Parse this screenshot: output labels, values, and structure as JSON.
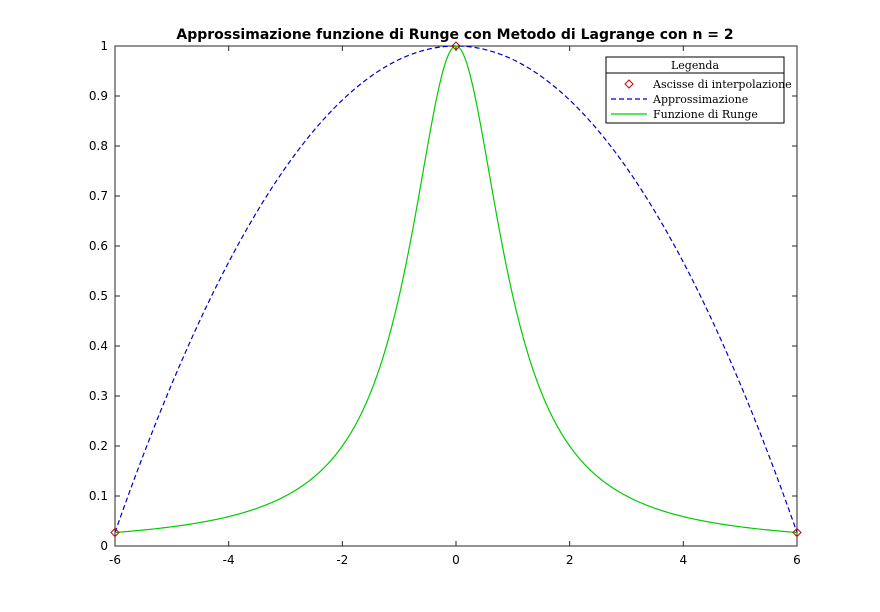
{
  "chart_data": {
    "type": "line",
    "title": "Approssimazione funzione di Runge con Metodo di Lagrange con n = 2",
    "xlabel": "",
    "ylabel": "",
    "xlim": [
      -6,
      6
    ],
    "ylim": [
      0,
      1
    ],
    "x_ticks": [
      -6,
      -4,
      -2,
      0,
      2,
      4,
      6
    ],
    "x_tick_labels": [
      "-6",
      "-4",
      "-2",
      "0",
      "2",
      "4",
      "6"
    ],
    "y_ticks": [
      0,
      0.1,
      0.2,
      0.3,
      0.4,
      0.5,
      0.6,
      0.7,
      0.8,
      0.9,
      1
    ],
    "y_tick_labels": [
      "0",
      "0.1",
      "0.2",
      "0.3",
      "0.4",
      "0.5",
      "0.6",
      "0.7",
      "0.8",
      "0.9",
      "1"
    ],
    "grid": false,
    "legend": {
      "title": "Legenda",
      "position": "top-right",
      "entries": [
        "Ascisse di interpolazione",
        "Approssimazione",
        "Funzione di Runge"
      ]
    },
    "series": [
      {
        "name": "Ascisse di interpolazione",
        "kind": "markers",
        "marker": "diamond",
        "color": "#cc0000",
        "x": [
          -6,
          0,
          6
        ],
        "y": [
          0.027,
          1,
          0.027
        ]
      },
      {
        "name": "Approssimazione",
        "kind": "line",
        "style": "dashed",
        "color": "#0000cc",
        "x": [
          -6,
          -5,
          -4,
          -3,
          -2,
          -1,
          0,
          1,
          2,
          3,
          4,
          5,
          6
        ],
        "y": [
          0.027,
          0.324,
          0.568,
          0.757,
          0.892,
          0.973,
          1.0,
          0.973,
          0.892,
          0.757,
          0.568,
          0.324,
          0.027
        ]
      },
      {
        "name": "Funzione di Runge",
        "kind": "line",
        "style": "solid",
        "color": "#00cc00",
        "x": [
          -6,
          -5,
          -4,
          -3,
          -2.5,
          -2,
          -1.5,
          -1.25,
          -1,
          -0.75,
          -0.5,
          -0.4,
          -0.3,
          -0.2,
          -0.1,
          0,
          0.1,
          0.2,
          0.3,
          0.4,
          0.5,
          0.75,
          1,
          1.25,
          1.5,
          2,
          2.5,
          3,
          4,
          5,
          6
        ],
        "y": [
          0.027,
          0.038,
          0.059,
          0.1,
          0.138,
          0.2,
          0.308,
          0.39,
          0.5,
          0.64,
          0.8,
          0.862,
          0.917,
          0.962,
          0.99,
          1.0,
          0.99,
          0.962,
          0.917,
          0.862,
          0.8,
          0.64,
          0.5,
          0.39,
          0.308,
          0.2,
          0.138,
          0.1,
          0.059,
          0.038,
          0.027
        ]
      }
    ]
  }
}
